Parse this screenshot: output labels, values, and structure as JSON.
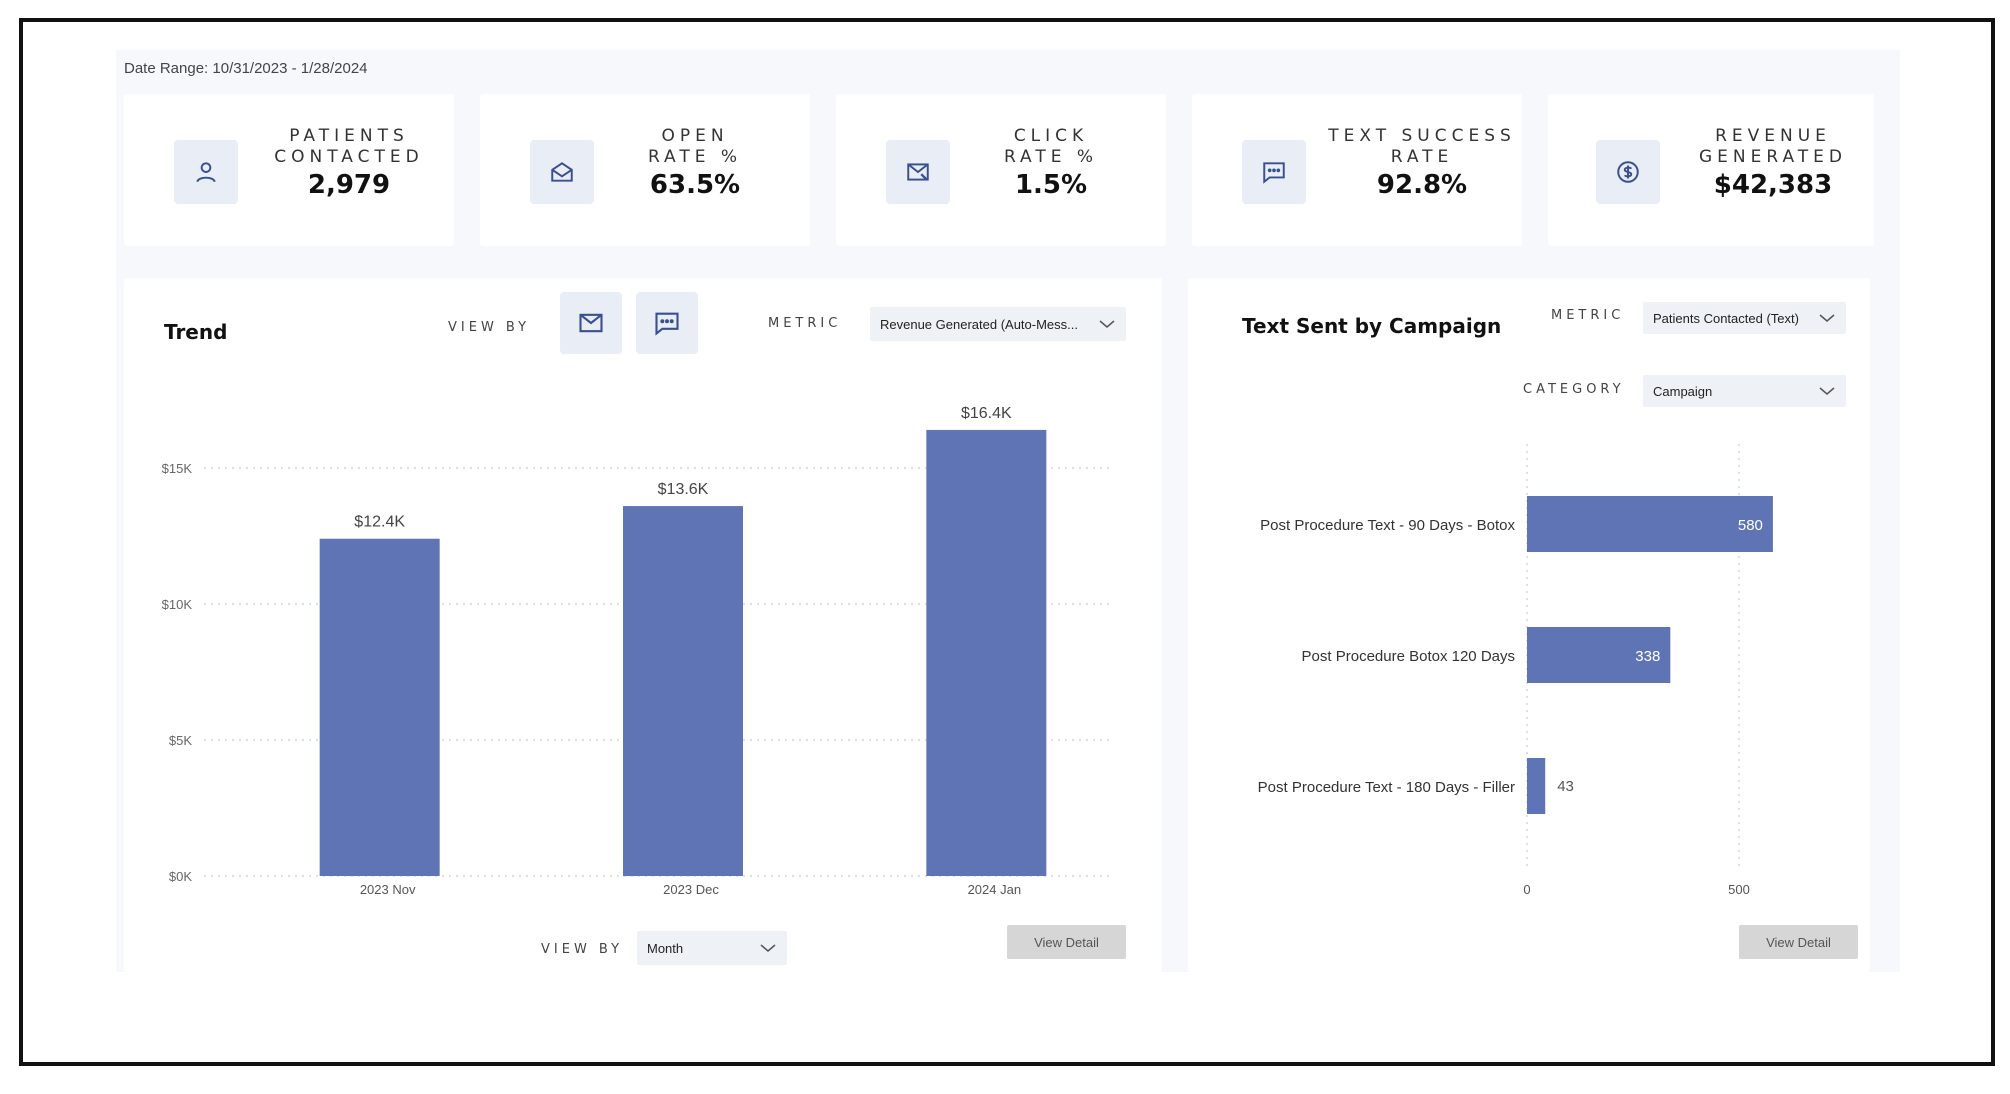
{
  "date_range": "Date Range: 10/31/2023 - 1/28/2024",
  "kpis": [
    {
      "label": "PATIENTS\nCONTACTED",
      "value": "2,979",
      "icon": "person-icon"
    },
    {
      "label": "OPEN\nRATE %",
      "value": "63.5%",
      "icon": "open-envelope-icon"
    },
    {
      "label": "CLICK\nRATE %",
      "value": "1.5%",
      "icon": "envelope-click-icon"
    },
    {
      "label": "TEXT SUCCESS\nRATE",
      "value": "92.8%",
      "icon": "chat-icon"
    },
    {
      "label": "REVENUE\nGENERATED",
      "value": "$42,383",
      "icon": "dollar-coin-icon"
    }
  ],
  "trend": {
    "title": "Trend",
    "view_by_label": "VIEW BY",
    "metric_label": "METRIC",
    "metric_value": "Revenue Generated (Auto-Mess...",
    "bottom_view_by_label": "VIEW BY",
    "bottom_view_by_value": "Month",
    "view_detail": "View Detail"
  },
  "campaign": {
    "title": "Text Sent by Campaign",
    "metric_label": "METRIC",
    "metric_value": "Patients Contacted (Text)",
    "category_label": "CATEGORY",
    "category_value": "Campaign",
    "view_detail": "View Detail"
  },
  "chart_data": [
    {
      "type": "bar",
      "title": "Trend",
      "categories": [
        "2023 Nov",
        "2023 Dec",
        "2024 Jan"
      ],
      "values": [
        12.4,
        13.6,
        16.4
      ],
      "data_labels": [
        "$12.4K",
        "$13.6K",
        "$16.4K"
      ],
      "y_ticks": [
        "$0K",
        "$5K",
        "$10K",
        "$15K"
      ],
      "y_tick_values": [
        0,
        5,
        10,
        15
      ],
      "ylim": [
        0,
        17.5
      ],
      "grid": true,
      "color": "#5f74b5"
    },
    {
      "type": "bar",
      "orientation": "horizontal",
      "title": "Text Sent by Campaign",
      "categories": [
        "Post Procedure Text - 90 Days - Botox",
        "Post Procedure Botox 120 Days",
        "Post Procedure Text - 180 Days - Filler"
      ],
      "values": [
        580,
        338,
        43
      ],
      "data_labels": [
        "580",
        "338",
        "43"
      ],
      "x_ticks": [
        "0",
        "500"
      ],
      "x_tick_values": [
        0,
        500
      ],
      "xlim": [
        0,
        730
      ],
      "grid": true,
      "color": "#5f74b5"
    }
  ]
}
